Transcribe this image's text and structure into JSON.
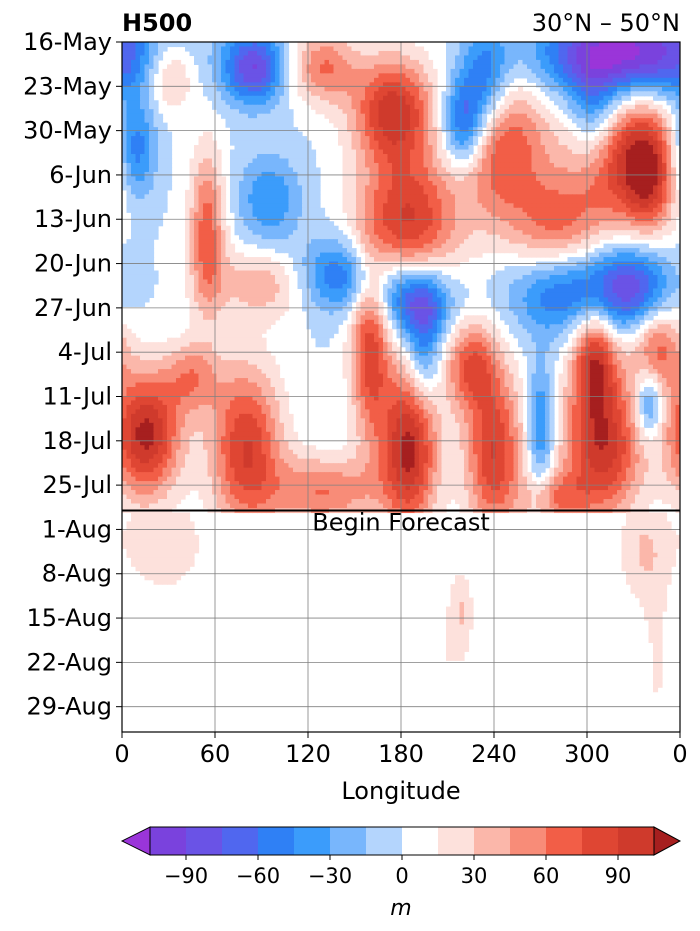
{
  "chart_data": {
    "type": "heatmap",
    "title_left": "H500",
    "title_right": "30°N – 50°N",
    "xlabel": "Longitude",
    "x_ticks": [
      "0",
      "60",
      "120",
      "180",
      "240",
      "300",
      "0"
    ],
    "x_tick_values": [
      0,
      60,
      120,
      180,
      240,
      300,
      360
    ],
    "xlim": [
      0,
      360
    ],
    "y_ticks": [
      "16-May",
      "23-May",
      "30-May",
      "6-Jun",
      "13-Jun",
      "20-Jun",
      "27-Jun",
      "4-Jul",
      "11-Jul",
      "18-Jul",
      "25-Jul",
      "1-Aug",
      "8-Aug",
      "15-Aug",
      "22-Aug",
      "29-Aug"
    ],
    "y_tick_days": [
      0,
      7,
      14,
      21,
      28,
      35,
      42,
      49,
      56,
      63,
      70,
      77,
      84,
      91,
      98,
      105
    ],
    "ylim_days": [
      0,
      109
    ],
    "y_inverted": true,
    "grid": true,
    "forecast_line_day": 74,
    "annotation": "Begin Forecast",
    "colorbar": {
      "label": "m",
      "ticks": [
        "−90",
        "−60",
        "−30",
        "0",
        "30",
        "60",
        "90"
      ],
      "tick_values": [
        -90,
        -60,
        -30,
        0,
        30,
        60,
        90
      ],
      "levels": [
        -105,
        -90,
        -75,
        -60,
        -45,
        -30,
        -15,
        0,
        15,
        30,
        45,
        60,
        75,
        90,
        105
      ],
      "colors": [
        "#7a42dd",
        "#6a53e6",
        "#5067ef",
        "#2f80f5",
        "#3b9cfb",
        "#78b6fc",
        "#b4d5fd",
        "#ffffff",
        "#fde1dc",
        "#fbb7aa",
        "#f88c78",
        "#f25e47",
        "#df4633",
        "#cf3a2c",
        "#b52624"
      ],
      "under_color": "#9a35d9",
      "over_color": "#a61f1f"
    },
    "anomaly_blobs": [
      {
        "lon": 85,
        "day": 4,
        "amp": -90,
        "w": 14,
        "h": 4
      },
      {
        "lon": 325,
        "day": 2,
        "amp": -120,
        "w": 40,
        "h": 5
      },
      {
        "lon": 235,
        "day": 6,
        "amp": -70,
        "w": 12,
        "h": 6
      },
      {
        "lon": 220,
        "day": 13,
        "amp": -80,
        "w": 10,
        "h": 5
      },
      {
        "lon": 305,
        "day": 12,
        "amp": -60,
        "w": 12,
        "h": 6
      },
      {
        "lon": 8,
        "day": 17,
        "amp": -70,
        "w": 10,
        "h": 6
      },
      {
        "lon": 95,
        "day": 25,
        "amp": -45,
        "w": 14,
        "h": 5
      },
      {
        "lon": 140,
        "day": 37,
        "amp": -70,
        "w": 22,
        "h": 4
      },
      {
        "lon": 190,
        "day": 41,
        "amp": -80,
        "w": 16,
        "h": 4
      },
      {
        "lon": 285,
        "day": 39,
        "amp": -70,
        "w": 25,
        "h": 5
      },
      {
        "lon": 330,
        "day": 39,
        "amp": -80,
        "w": 18,
        "h": 5
      },
      {
        "lon": 195,
        "day": 49,
        "amp": -50,
        "w": 8,
        "h": 6
      },
      {
        "lon": 270,
        "day": 61,
        "amp": -55,
        "w": 6,
        "h": 7
      },
      {
        "lon": 340,
        "day": 57,
        "amp": -60,
        "w": 6,
        "h": 4
      },
      {
        "lon": 30,
        "day": 5,
        "amp": 50,
        "w": 12,
        "h": 4
      },
      {
        "lon": 130,
        "day": 4,
        "amp": 60,
        "w": 15,
        "h": 4
      },
      {
        "lon": 175,
        "day": 11,
        "amp": 100,
        "w": 18,
        "h": 6
      },
      {
        "lon": 245,
        "day": 16,
        "amp": 80,
        "w": 20,
        "h": 9
      },
      {
        "lon": 325,
        "day": 18,
        "amp": 100,
        "w": 25,
        "h": 8
      },
      {
        "lon": 185,
        "day": 28,
        "amp": 90,
        "w": 22,
        "h": 7
      },
      {
        "lon": 280,
        "day": 30,
        "amp": 60,
        "w": 20,
        "h": 6
      },
      {
        "lon": 55,
        "day": 30,
        "amp": 70,
        "w": 8,
        "h": 9
      },
      {
        "lon": 95,
        "day": 38,
        "amp": 45,
        "w": 25,
        "h": 4
      },
      {
        "lon": 340,
        "day": 22,
        "amp": 50,
        "w": 10,
        "h": 6
      },
      {
        "lon": 160,
        "day": 48,
        "amp": 85,
        "w": 9,
        "h": 10
      },
      {
        "lon": 225,
        "day": 51,
        "amp": 70,
        "w": 12,
        "h": 5
      },
      {
        "lon": 305,
        "day": 50,
        "amp": 90,
        "w": 10,
        "h": 6
      },
      {
        "lon": 345,
        "day": 48,
        "amp": 70,
        "w": 12,
        "h": 5
      },
      {
        "lon": 15,
        "day": 62,
        "amp": 110,
        "w": 16,
        "h": 7
      },
      {
        "lon": 80,
        "day": 64,
        "amp": 90,
        "w": 16,
        "h": 9
      },
      {
        "lon": 185,
        "day": 64,
        "amp": 110,
        "w": 13,
        "h": 9
      },
      {
        "lon": 240,
        "day": 65,
        "amp": 90,
        "w": 13,
        "h": 9
      },
      {
        "lon": 310,
        "day": 64,
        "amp": 100,
        "w": 18,
        "h": 8
      },
      {
        "lon": 45,
        "day": 53,
        "amp": 50,
        "w": 12,
        "h": 4
      },
      {
        "lon": 130,
        "day": 71,
        "amp": 60,
        "w": 25,
        "h": 4
      },
      {
        "lon": 280,
        "day": 72,
        "amp": 50,
        "w": 14,
        "h": 3
      }
    ],
    "forecast_blobs": [
      {
        "lon": 20,
        "day": 78,
        "amp": 22,
        "w": 16,
        "h": 6
      },
      {
        "lon": 40,
        "day": 80,
        "amp": 12,
        "w": 18,
        "h": 6
      },
      {
        "lon": 210,
        "day": 95,
        "amp": 15,
        "w": 12,
        "h": 14
      },
      {
        "lon": 220,
        "day": 90,
        "amp": 22,
        "w": 4,
        "h": 4
      },
      {
        "lon": 285,
        "day": 100,
        "amp": 12,
        "w": 12,
        "h": 22
      },
      {
        "lon": 335,
        "day": 80,
        "amp": 28,
        "w": 12,
        "h": 6
      },
      {
        "lon": 345,
        "day": 98,
        "amp": 16,
        "w": 8,
        "h": 14
      }
    ]
  }
}
